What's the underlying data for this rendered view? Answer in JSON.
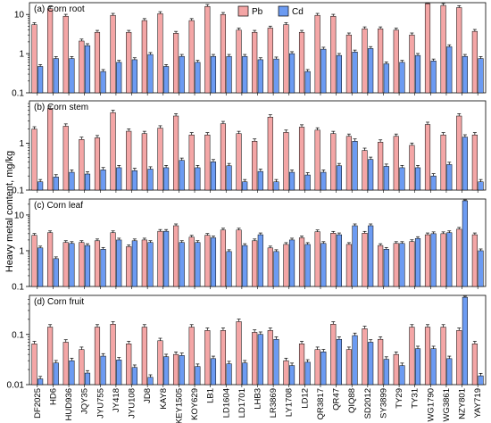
{
  "ylabel": "Heavy metal content, mg/kg",
  "legend": [
    {
      "label": "Pb",
      "color": "#f4a6a6"
    },
    {
      "label": "Cd",
      "color": "#6c9bf2"
    }
  ],
  "colors": {
    "pb": "#f4a6a6",
    "cd": "#6c9bf2",
    "stroke": "#000000"
  },
  "categories": [
    "DF2025",
    "HD6",
    "HUD936",
    "JQY35",
    "JYU755",
    "JY418",
    "JYU108",
    "JD8",
    "KAY8",
    "KEY1505",
    "KOY629",
    "LB1",
    "LD1604",
    "LD1701",
    "LHB3",
    "LR3869",
    "LY1708",
    "LD12",
    "QR3817",
    "QR47",
    "QIQ88",
    "SD2012",
    "SY3899",
    "TY29",
    "TY31",
    "WG1790",
    "WG3861",
    "NZY801",
    "YAY719"
  ],
  "chart_data": [
    {
      "type": "bar",
      "panel_label": "(a) Corn root",
      "yscale": "log",
      "ylim": [
        0.1,
        20
      ],
      "yticks": [
        0.1,
        1,
        10
      ],
      "ytick_labels": [
        "0.1",
        "1",
        "10"
      ],
      "series": [
        {
          "name": "Pb",
          "values": [
            5.5,
            14,
            9,
            2.1,
            3.5,
            9.5,
            3.5,
            7,
            10.5,
            3.3,
            7,
            16,
            10,
            4,
            3.5,
            4.5,
            5.5,
            3.5,
            9.5,
            9,
            3,
            4.3,
            4.3,
            4,
            3,
            19,
            17,
            15,
            3.7
          ]
        },
        {
          "name": "Cd",
          "values": [
            0.47,
            0.75,
            0.75,
            1.6,
            0.35,
            0.6,
            0.7,
            0.95,
            0.47,
            0.85,
            0.6,
            0.85,
            0.85,
            0.85,
            0.7,
            0.73,
            1.0,
            0.35,
            1.3,
            0.9,
            1.1,
            1.35,
            0.55,
            0.6,
            0.9,
            0.65,
            1.5,
            0.85,
            0.75
          ]
        }
      ]
    },
    {
      "type": "bar",
      "panel_label": "(b) Corn stem",
      "yscale": "log",
      "ylim": [
        0.1,
        8
      ],
      "yticks": [
        0.1,
        1
      ],
      "ytick_labels": [
        "0.1",
        "1"
      ],
      "series": [
        {
          "name": "Pb",
          "values": [
            2.0,
            5.5,
            2.3,
            1.2,
            1.3,
            4.5,
            1.8,
            1.6,
            2.1,
            3.8,
            1.5,
            1.5,
            2.6,
            1.6,
            1.1,
            3.6,
            1.7,
            2.2,
            1.9,
            1.6,
            1.4,
            0.7,
            1.05,
            1.4,
            0.9,
            2.5,
            1.5,
            3.8,
            1.5
          ]
        },
        {
          "name": "Cd",
          "values": [
            0.15,
            0.19,
            0.24,
            0.22,
            0.27,
            0.3,
            0.26,
            0.28,
            0.3,
            0.43,
            0.3,
            0.4,
            0.33,
            0.15,
            0.25,
            0.15,
            0.24,
            0.21,
            0.24,
            0.33,
            1.1,
            0.45,
            0.32,
            0.3,
            0.3,
            0.2,
            0.35,
            1.35,
            0.15
          ]
        }
      ]
    },
    {
      "type": "bar",
      "panel_label": "(c) Corn leaf",
      "yscale": "log",
      "ylim": [
        0.1,
        28
      ],
      "yticks": [
        0.1,
        1,
        10
      ],
      "ytick_labels": [
        "0.1",
        "1",
        "10"
      ],
      "series": [
        {
          "name": "Pb",
          "values": [
            2.7,
            3.2,
            1.7,
            1.7,
            1.9,
            3.2,
            1.3,
            2.0,
            3.5,
            5.0,
            2.4,
            2.7,
            3.8,
            3.8,
            1.9,
            1.2,
            1.5,
            2.3,
            3.4,
            3.1,
            1.5,
            3.1,
            1.4,
            1.6,
            1.8,
            2.8,
            3.0,
            4.0,
            2.8
          ]
        },
        {
          "name": "Cd",
          "values": [
            1.2,
            0.6,
            1.6,
            1.4,
            1.1,
            2.0,
            1.9,
            1.7,
            3.5,
            1.7,
            1.7,
            2.3,
            0.95,
            1.4,
            2.8,
            0.95,
            2.0,
            1.5,
            1.6,
            2.8,
            5.0,
            5.0,
            1.1,
            1.6,
            2.2,
            3.0,
            3.2,
            25,
            1.0
          ]
        }
      ]
    },
    {
      "type": "bar",
      "panel_label": "(d) Corn fruit",
      "yscale": "log",
      "ylim": [
        0.01,
        0.6
      ],
      "yticks": [
        0.01,
        0.1
      ],
      "ytick_labels": [
        "0.01",
        "0.1"
      ],
      "series": [
        {
          "name": "Pb",
          "values": [
            0.065,
            0.14,
            0.07,
            0.05,
            0.14,
            0.16,
            0.065,
            0.14,
            0.075,
            0.04,
            0.14,
            0.12,
            0.12,
            0.18,
            0.11,
            0.12,
            0.03,
            0.065,
            0.05,
            0.16,
            0.05,
            0.13,
            0.08,
            0.04,
            0.14,
            0.14,
            0.14,
            0.12,
            0.065
          ]
        },
        {
          "name": "Cd",
          "values": [
            0.013,
            0.027,
            0.03,
            0.017,
            0.037,
            0.031,
            0.022,
            0.014,
            0.036,
            0.038,
            0.023,
            0.033,
            0.026,
            0.027,
            0.1,
            0.08,
            0.024,
            0.028,
            0.045,
            0.08,
            0.095,
            0.07,
            0.032,
            0.024,
            0.052,
            0.052,
            0.033,
            0.55,
            0.015
          ]
        }
      ]
    }
  ]
}
